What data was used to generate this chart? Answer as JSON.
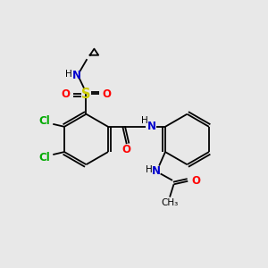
{
  "bg_color": "#e8e8e8",
  "bond_color": "#000000",
  "colors": {
    "N": "#0000cd",
    "O": "#ff0000",
    "S": "#cccc00",
    "Cl": "#00aa00",
    "H": "#000000",
    "C": "#000000"
  },
  "font_size": 8.5,
  "lw": 1.3
}
